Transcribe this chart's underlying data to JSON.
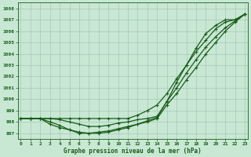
{
  "title": "Graphe pression niveau de la mer (hPa)",
  "bg_color": "#c8e8d4",
  "grid_color": "#a8c8b8",
  "line_color": "#1a5c1a",
  "x": [
    0,
    1,
    2,
    3,
    4,
    5,
    6,
    7,
    8,
    9,
    10,
    11,
    12,
    13,
    14,
    15,
    16,
    17,
    18,
    19,
    20,
    21,
    22,
    23
  ],
  "line1": [
    998.3,
    998.3,
    998.3,
    998.3,
    998.3,
    998.3,
    998.3,
    998.3,
    998.3,
    998.3,
    998.3,
    998.3,
    998.6,
    999.0,
    999.5,
    1000.5,
    1001.8,
    1003.0,
    1004.2,
    1005.2,
    1006.2,
    1006.8,
    1007.0,
    1007.5
  ],
  "line2": [
    998.3,
    998.3,
    998.3,
    997.8,
    997.5,
    997.3,
    997.1,
    997.0,
    997.0,
    997.1,
    997.3,
    997.5,
    997.8,
    998.0,
    998.3,
    999.5,
    1000.5,
    1001.7,
    1002.8,
    1004.0,
    1005.0,
    1006.0,
    1006.8,
    1007.5
  ],
  "line3": [
    998.3,
    998.3,
    998.3,
    998.0,
    997.7,
    997.3,
    997.0,
    997.0,
    997.1,
    997.2,
    997.4,
    997.6,
    997.8,
    998.1,
    998.4,
    999.8,
    1001.0,
    1002.3,
    1003.5,
    1004.6,
    1005.5,
    1006.3,
    1006.9,
    1007.5
  ],
  "line4": [
    998.3,
    998.3,
    998.3,
    998.3,
    998.2,
    998.0,
    997.8,
    997.6,
    997.6,
    997.7,
    997.9,
    998.0,
    998.2,
    998.3,
    998.5,
    999.8,
    1001.5,
    1003.0,
    1004.5,
    1005.8,
    1006.5,
    1007.0,
    1007.0,
    1007.5
  ],
  "yticks": [
    997,
    998,
    999,
    1000,
    1001,
    1002,
    1003,
    1004,
    1005,
    1006,
    1007,
    1008
  ],
  "xticks": [
    0,
    1,
    2,
    3,
    4,
    5,
    6,
    7,
    8,
    9,
    10,
    11,
    12,
    13,
    14,
    15,
    16,
    17,
    18,
    19,
    20,
    21,
    22,
    23
  ],
  "ylim": [
    996.5,
    1008.5
  ],
  "xlim": [
    -0.3,
    23.3
  ]
}
